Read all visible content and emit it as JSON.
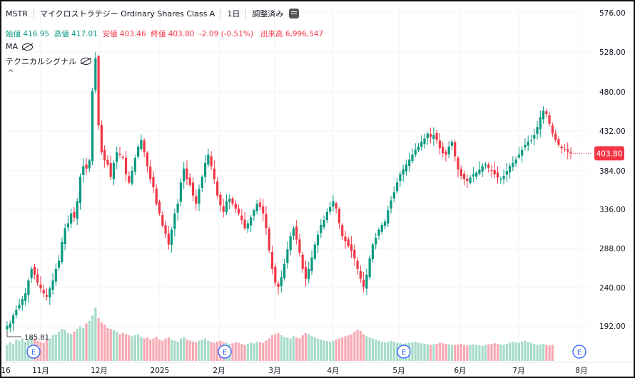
{
  "header": {
    "symbol": "MSTR",
    "name": "マイクロストラテジー Ordinary Shares Class A",
    "interval": "1日",
    "adjusted": "調整済み"
  },
  "ohlc": {
    "open_label": "始値",
    "open": "416.95",
    "high_label": "高値",
    "high": "417.01",
    "low_label": "安値",
    "low": "403.46",
    "close_label": "終値",
    "close": "403.80",
    "change": "-2.09 (-0.51%)",
    "volume_label": "出来高",
    "volume": "6,996,547"
  },
  "indicators": [
    "MA",
    "テクニカルシグナル"
  ],
  "colors": {
    "up": "#089981",
    "down": "#f23645",
    "vol_up": "#a7dcc9",
    "vol_down": "#f7a9b3",
    "event": "#2962ff"
  },
  "chart_data": {
    "type": "candlestick",
    "y_ticks": [
      "576.00",
      "528.00",
      "480.00",
      "432.00",
      "384.00",
      "336.00",
      "288.00",
      "240.00",
      "192.00"
    ],
    "ylim": [
      144,
      586
    ],
    "x_labels": [
      "16",
      "11月",
      "12月",
      "2025",
      "2月",
      "3月",
      "4月",
      "5月",
      "6月",
      "7月",
      "8月"
    ],
    "last_price": "403.80",
    "min_marker": "185.81",
    "events": [
      "E",
      "E",
      "E",
      "E"
    ],
    "close_series": [
      192,
      195,
      205,
      212,
      218,
      225,
      232,
      248,
      262,
      255,
      245,
      238,
      232,
      228,
      238,
      248,
      262,
      272,
      295,
      312,
      318,
      330,
      325,
      345,
      375,
      388,
      385,
      395,
      480,
      520,
      438,
      405,
      395,
      390,
      375,
      392,
      405,
      402,
      398,
      378,
      368,
      382,
      398,
      412,
      420,
      405,
      388,
      372,
      362,
      342,
      330,
      315,
      305,
      292,
      310,
      330,
      342,
      368,
      385,
      372,
      365,
      352,
      342,
      360,
      375,
      392,
      402,
      388,
      372,
      352,
      340,
      332,
      345,
      348,
      342,
      336,
      330,
      322,
      312,
      318,
      325,
      334,
      342,
      338,
      330,
      312,
      285,
      262,
      245,
      240,
      252,
      268,
      286,
      302,
      312,
      298,
      282,
      262,
      250,
      262,
      276,
      292,
      304,
      316,
      322,
      332,
      338,
      345,
      336,
      318,
      302,
      296,
      290,
      284,
      275,
      262,
      250,
      240,
      255,
      275,
      292,
      300,
      310,
      316,
      320,
      334,
      346,
      356,
      368,
      378,
      384,
      390,
      396,
      402,
      408,
      412,
      418,
      422,
      428,
      424,
      426,
      420,
      410,
      404,
      402,
      412,
      418,
      400,
      384,
      376,
      372,
      370,
      374,
      378,
      380,
      384,
      388,
      390,
      386,
      382,
      378,
      374,
      372,
      376,
      382,
      388,
      392,
      396,
      402,
      408,
      414,
      418,
      420,
      426,
      436,
      448,
      456,
      452,
      440,
      428,
      420,
      414,
      410,
      408,
      406,
      403.8
    ],
    "volume_series": [
      0.3,
      0.35,
      0.32,
      0.4,
      0.38,
      0.42,
      0.36,
      0.4,
      0.45,
      0.42,
      0.38,
      0.36,
      0.34,
      0.4,
      0.42,
      0.48,
      0.5,
      0.55,
      0.6,
      0.58,
      0.52,
      0.5,
      0.55,
      0.6,
      0.65,
      0.62,
      0.7,
      0.75,
      0.85,
      1.0,
      0.8,
      0.72,
      0.68,
      0.62,
      0.6,
      0.58,
      0.55,
      0.5,
      0.52,
      0.5,
      0.48,
      0.46,
      0.48,
      0.5,
      0.45,
      0.42,
      0.44,
      0.4,
      0.42,
      0.45,
      0.4,
      0.38,
      0.42,
      0.44,
      0.4,
      0.38,
      0.36,
      0.42,
      0.45,
      0.4,
      0.38,
      0.36,
      0.35,
      0.38,
      0.4,
      0.42,
      0.38,
      0.36,
      0.34,
      0.36,
      0.38,
      0.35,
      0.34,
      0.32,
      0.33,
      0.35,
      0.34,
      0.32,
      0.3,
      0.32,
      0.34,
      0.33,
      0.36,
      0.35,
      0.34,
      0.38,
      0.42,
      0.48,
      0.5,
      0.52,
      0.48,
      0.45,
      0.44,
      0.42,
      0.46,
      0.44,
      0.42,
      0.48,
      0.52,
      0.5,
      0.46,
      0.44,
      0.42,
      0.4,
      0.38,
      0.37,
      0.36,
      0.38,
      0.4,
      0.42,
      0.44,
      0.46,
      0.48,
      0.5,
      0.55,
      0.58,
      0.56,
      0.5,
      0.46,
      0.44,
      0.42,
      0.4,
      0.38,
      0.36,
      0.35,
      0.36,
      0.38,
      0.36,
      0.34,
      0.33,
      0.32,
      0.33,
      0.34,
      0.35,
      0.36,
      0.34,
      0.33,
      0.32,
      0.31,
      0.3,
      0.31,
      0.32,
      0.34,
      0.33,
      0.32,
      0.31,
      0.3,
      0.3,
      0.31,
      0.32,
      0.3,
      0.29,
      0.3,
      0.31,
      0.3,
      0.29,
      0.28,
      0.3,
      0.31,
      0.32,
      0.33,
      0.32,
      0.31,
      0.3,
      0.32,
      0.34,
      0.36,
      0.35,
      0.34,
      0.36,
      0.38,
      0.36,
      0.34,
      0.32,
      0.3,
      0.31,
      0.32,
      0.3,
      0.29,
      0.3
    ]
  }
}
